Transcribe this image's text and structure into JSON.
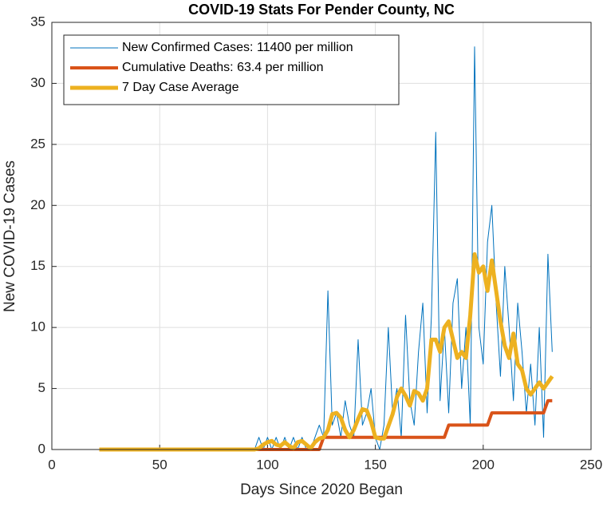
{
  "chart_data": {
    "type": "line",
    "title": "COVID-19 Stats For Pender County, NC",
    "x_label": "Days Since 2020 Began",
    "y_label": "New COVID-19 Cases",
    "x": [
      22,
      24,
      26,
      28,
      30,
      32,
      34,
      36,
      38,
      40,
      42,
      44,
      46,
      48,
      50,
      52,
      54,
      56,
      58,
      60,
      62,
      64,
      66,
      68,
      70,
      72,
      74,
      76,
      78,
      80,
      82,
      84,
      86,
      88,
      90,
      92,
      94,
      96,
      98,
      100,
      102,
      104,
      106,
      108,
      110,
      112,
      114,
      116,
      118,
      120,
      122,
      124,
      126,
      128,
      130,
      132,
      134,
      136,
      138,
      140,
      142,
      144,
      146,
      148,
      150,
      152,
      154,
      156,
      158,
      160,
      162,
      164,
      166,
      168,
      170,
      172,
      174,
      176,
      178,
      180,
      182,
      184,
      186,
      188,
      190,
      192,
      194,
      196,
      198,
      200,
      202,
      204,
      206,
      208,
      210,
      212,
      214,
      216,
      218,
      220,
      222,
      224,
      226,
      228,
      230,
      232
    ],
    "series": [
      {
        "name": "New Confirmed Cases: 11400 per million",
        "color": "#0072bd",
        "width": 1,
        "values": [
          0,
          0,
          0,
          0,
          0,
          0,
          0,
          0,
          0,
          0,
          0,
          0,
          0,
          0,
          0,
          0,
          0,
          0,
          0,
          0,
          0,
          0,
          0,
          0,
          0,
          0,
          0,
          0,
          0,
          0,
          0,
          0,
          0,
          0,
          0,
          0,
          0,
          1,
          0,
          1,
          0,
          1,
          0,
          1,
          0,
          1,
          0,
          1,
          0,
          0,
          1,
          2,
          1,
          13,
          2,
          3,
          1,
          4,
          2,
          1,
          9,
          2,
          3,
          5,
          1,
          0,
          2,
          10,
          3,
          5,
          1,
          11,
          4,
          2,
          8,
          12,
          3,
          11,
          26,
          4,
          10,
          3,
          12,
          14,
          5,
          10,
          2,
          33,
          10,
          7,
          17,
          20,
          12,
          6,
          15,
          10,
          4,
          12,
          8,
          3,
          7,
          2,
          10,
          1,
          16,
          8
        ]
      },
      {
        "name": "Cumulative Deaths: 63.4 per million",
        "color": "#d95319",
        "width": 4,
        "values": [
          0,
          0,
          0,
          0,
          0,
          0,
          0,
          0,
          0,
          0,
          0,
          0,
          0,
          0,
          0,
          0,
          0,
          0,
          0,
          0,
          0,
          0,
          0,
          0,
          0,
          0,
          0,
          0,
          0,
          0,
          0,
          0,
          0,
          0,
          0,
          0,
          0,
          0,
          0,
          0,
          0,
          0,
          0,
          0,
          0,
          0,
          0,
          0,
          0,
          0,
          0,
          0,
          1,
          1,
          1,
          1,
          1,
          1,
          1,
          1,
          1,
          1,
          1,
          1,
          1,
          1,
          1,
          1,
          1,
          1,
          1,
          1,
          1,
          1,
          1,
          1,
          1,
          1,
          1,
          1,
          1,
          2,
          2,
          2,
          2,
          2,
          2,
          2,
          2,
          2,
          2,
          3,
          3,
          3,
          3,
          3,
          3,
          3,
          3,
          3,
          3,
          3,
          3,
          3,
          4,
          4
        ]
      },
      {
        "name": "7 Day Case Average",
        "color": "#edb120",
        "width": 5,
        "values": [
          0,
          0,
          0,
          0,
          0,
          0,
          0,
          0,
          0,
          0,
          0,
          0,
          0,
          0,
          0,
          0,
          0,
          0,
          0,
          0,
          0,
          0,
          0,
          0,
          0,
          0,
          0,
          0,
          0,
          0,
          0,
          0,
          0,
          0,
          0,
          0,
          0,
          0.1,
          0.4,
          0.6,
          0.7,
          0.4,
          0.3,
          0.6,
          0.3,
          0.1,
          0.6,
          0.7,
          0.4,
          0.1,
          0.6,
          0.9,
          1.0,
          1.6,
          2.9,
          3.0,
          2.6,
          1.6,
          1.0,
          1.6,
          2.5,
          3.3,
          3.2,
          2.3,
          1.0,
          0.9,
          0.9,
          1.9,
          2.9,
          4.3,
          5.0,
          4.4,
          3.6,
          4.8,
          4.6,
          4.0,
          5.0,
          9.0,
          9.0,
          8.0,
          10.0,
          10.5,
          9.0,
          7.5,
          8.0,
          7.5,
          11,
          16,
          14.5,
          15,
          13,
          15.5,
          13,
          10.5,
          8.5,
          7.5,
          9.5,
          7.0,
          6.5,
          5.0,
          4.5,
          5.0,
          5.5,
          5.0,
          5.5,
          6.0
        ]
      }
    ],
    "xlim": [
      0,
      250
    ],
    "xticks": [
      0,
      50,
      100,
      150,
      200,
      250
    ],
    "ylim": [
      0,
      35
    ],
    "yticks": [
      0,
      5,
      10,
      15,
      20,
      25,
      30,
      35
    ],
    "grid": true,
    "legend": "upper left"
  }
}
